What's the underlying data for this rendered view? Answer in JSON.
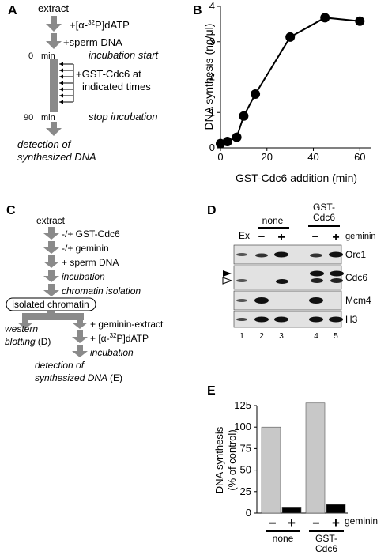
{
  "panel_labels": {
    "A": "A",
    "B": "B",
    "C": "C",
    "D": "D",
    "E": "E"
  },
  "panel_a": {
    "extract": "extract",
    "dATP_pre": "+[α-",
    "dATP_sup": "32",
    "dATP_post": "P]dATP",
    "sperm": "+sperm DNA",
    "t0": "0",
    "min": "min",
    "incubation_start": "incubation start",
    "cdc6_add_1": "+GST-Cdc6 at",
    "cdc6_add_2": "indicated times",
    "t90": "90",
    "min2": "min",
    "stop": "stop incubation",
    "detection_1": "detection of",
    "detection_2": "synthesized DNA"
  },
  "panel_b": {
    "ylabel": "DNA synthesis (ng/μl)",
    "xlabel": "GST-Cdc6 addition (min)",
    "x_ticks": [
      "0",
      "20",
      "40",
      "60"
    ],
    "y_ticks": [
      "0",
      "1",
      "2",
      "3",
      "4"
    ]
  },
  "panel_c": {
    "extract": "extract",
    "cdc6": "-/+ GST-Cdc6",
    "geminin": "-/+ geminin",
    "sperm": "+ sperm DNA",
    "incubation": "incubation",
    "chromatin_isolation": "chromatin isolation",
    "isolated": "isolated chromatin",
    "western_1": "western",
    "western_2": "blotting",
    "western_ref": "(D)",
    "gem_extract": "+ geminin-extract",
    "dATP_pre": "+ [α-",
    "dATP_sup": "32",
    "dATP_post": "P]dATP",
    "incubation2": "incubation",
    "detection_1": "detection of",
    "detection_2": "synthesized DNA",
    "detection_ref": "(E)"
  },
  "panel_d": {
    "ex": "Ex",
    "none": "none",
    "gst_1": "GST-",
    "gst_2": "Cdc6",
    "minus_1": "−",
    "plus_1": "+",
    "minus_2": "−",
    "plus_2": "+",
    "geminin": "geminin",
    "blots": [
      "Orc1",
      "Cdc6",
      "Mcm4",
      "H3"
    ],
    "lanes": [
      "1",
      "2",
      "3",
      "4",
      "5"
    ]
  },
  "panel_e": {
    "ylabel_1": "DNA synthesis",
    "ylabel_2": "(% of control)",
    "y_ticks": [
      "0",
      "25",
      "50",
      "75",
      "100",
      "125"
    ],
    "minus_1": "−",
    "plus_1": "+",
    "minus_2": "−",
    "plus_2": "+",
    "geminin": "geminin",
    "group_1": "none",
    "group_2_1": "GST-",
    "group_2_2": "Cdc6"
  },
  "colors": {
    "arrow": "#8a8a8a",
    "bar_minus": "#c8c8c8",
    "bar_plus": "#000000",
    "blot_bg": "#e2e2e2"
  },
  "chart_data": [
    {
      "type": "line",
      "panel": "B",
      "xlabel": "GST-Cdc6 addition (min)",
      "ylabel": "DNA synthesis (ng/μl)",
      "x": [
        0,
        3,
        7,
        10,
        15,
        30,
        45,
        60
      ],
      "y": [
        0.12,
        0.18,
        0.3,
        0.9,
        1.52,
        3.13,
        3.68,
        3.58
      ],
      "xlim": [
        0,
        65
      ],
      "ylim": [
        0,
        4
      ],
      "grid": false
    },
    {
      "type": "bar",
      "panel": "E",
      "ylabel": "DNA synthesis (% of control)",
      "categories": [
        "none −",
        "none +",
        "GST-Cdc6 −",
        "GST-Cdc6 +"
      ],
      "values": [
        100,
        7,
        128,
        10
      ],
      "ylim": [
        0,
        125
      ],
      "grid": false
    }
  ]
}
